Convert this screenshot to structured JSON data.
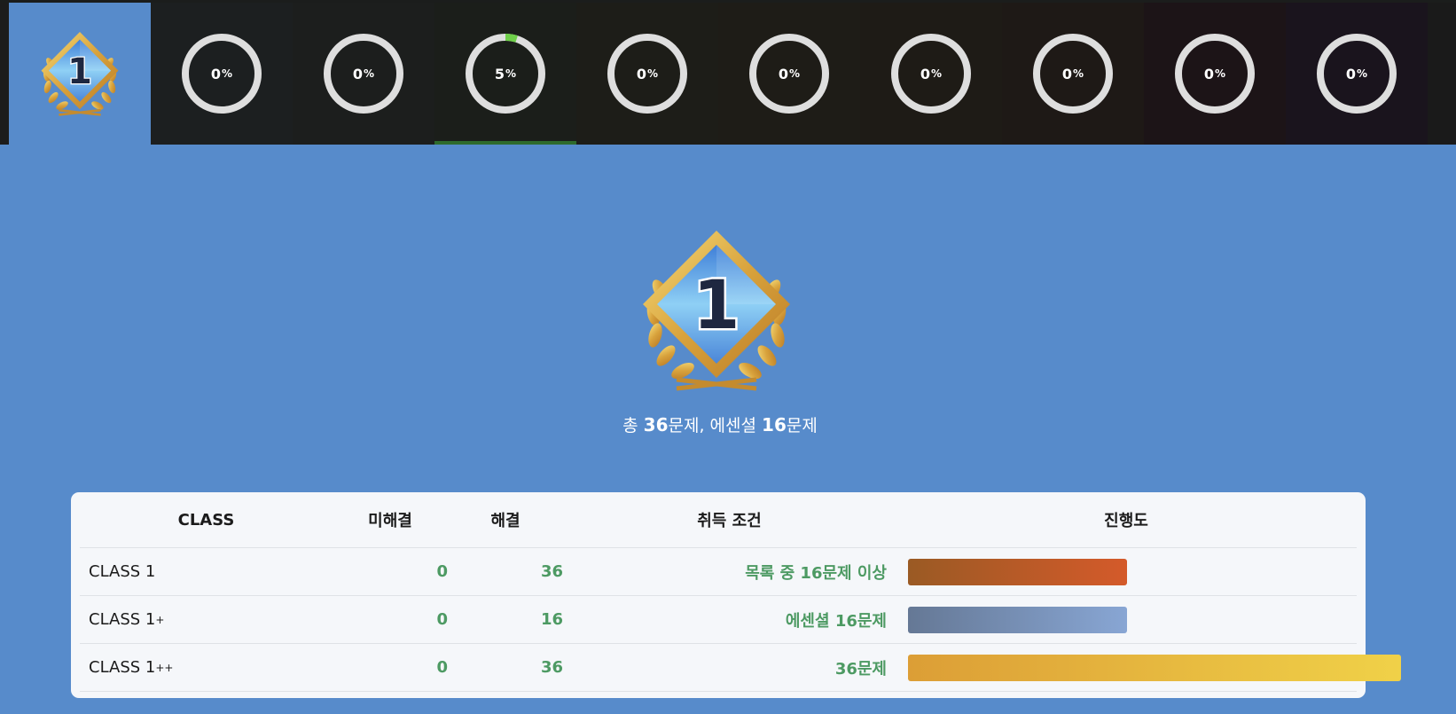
{
  "tabs": [
    {
      "type": "badge",
      "label": "1",
      "active": true
    },
    {
      "type": "ring",
      "value": "0",
      "unit": "%",
      "fraction": 0,
      "bg": "#1c1f20"
    },
    {
      "type": "ring",
      "value": "0",
      "unit": "%",
      "fraction": 0,
      "bg": "#1c1e1d"
    },
    {
      "type": "ring",
      "value": "5",
      "unit": "%",
      "fraction": 0.05,
      "bg": "#1b1e1a",
      "accent": "#6fcf4a"
    },
    {
      "type": "ring",
      "value": "0",
      "unit": "%",
      "fraction": 0,
      "bg": "#1d1d18"
    },
    {
      "type": "ring",
      "value": "0",
      "unit": "%",
      "fraction": 0,
      "bg": "#1e1c17"
    },
    {
      "type": "ring",
      "value": "0",
      "unit": "%",
      "fraction": 0,
      "bg": "#1e1b16"
    },
    {
      "type": "ring",
      "value": "0",
      "unit": "%",
      "fraction": 0,
      "bg": "#1e1916"
    },
    {
      "type": "ring",
      "value": "0",
      "unit": "%",
      "fraction": 0,
      "bg": "#1c1417"
    },
    {
      "type": "ring",
      "value": "0",
      "unit": "%",
      "fraction": 0,
      "bg": "#1a141d"
    }
  ],
  "hero": {
    "badge_number": "1",
    "summary": {
      "prefix": "총 ",
      "total": "36",
      "mid": "문제, 에센셜 ",
      "essential": "16",
      "suffix": "문제"
    }
  },
  "table": {
    "headers": {
      "class": "CLASS",
      "unsolved": "미해결",
      "solved": "해결",
      "condition": "취득 조건",
      "progress": "진행도"
    },
    "rows": [
      {
        "class": "CLASS 1",
        "sup": "",
        "unsolved": "0",
        "solved": "36",
        "condition": "목록 중 16문제 이상",
        "progress": 0.444,
        "bar_from": "#9a5a24",
        "bar_to": "#d45a2a"
      },
      {
        "class": "CLASS 1",
        "sup": "+",
        "unsolved": "0",
        "solved": "16",
        "condition": "에센셜 16문제",
        "progress": 0.444,
        "bar_from": "#657895",
        "bar_to": "#88a6d4"
      },
      {
        "class": "CLASS 1",
        "sup": "++",
        "unsolved": "0",
        "solved": "36",
        "condition": "36문제",
        "progress": 1.0,
        "bar_from": "#dc9e36",
        "bar_to": "#f0d148"
      }
    ]
  }
}
